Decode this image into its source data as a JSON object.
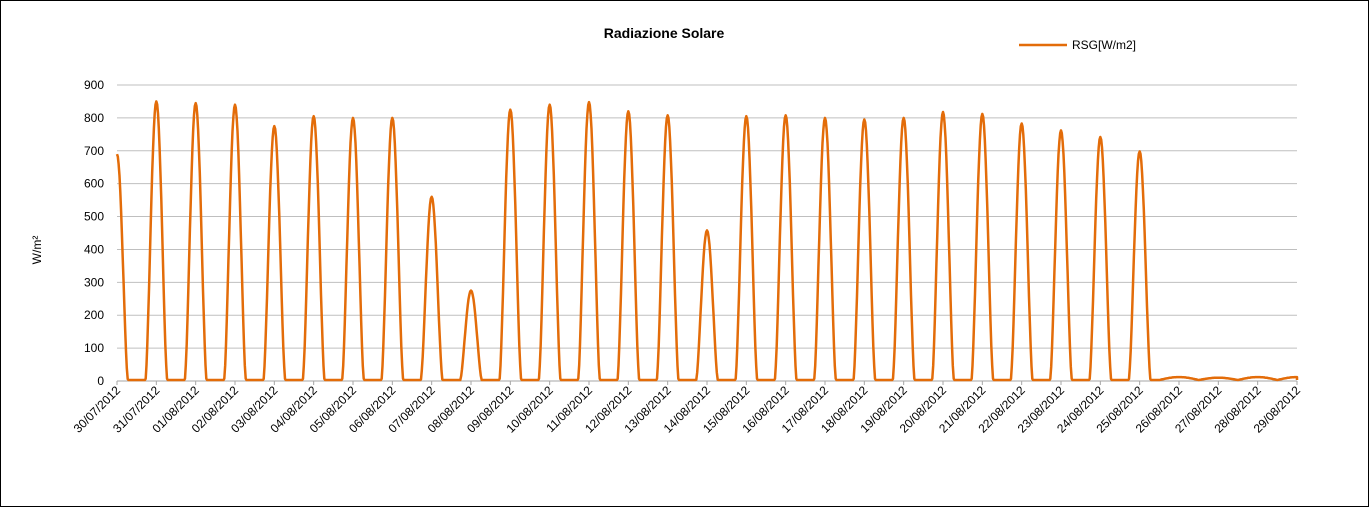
{
  "chart_data": {
    "type": "line",
    "title": "Radiazione Solare",
    "ylabel": "W/m²",
    "xlabel": "",
    "ylim": [
      0,
      900
    ],
    "yticks": [
      "0",
      "100",
      "200",
      "300",
      "400",
      "500",
      "600",
      "700",
      "800",
      "900"
    ],
    "grid": true,
    "legend_position": "top-right",
    "categories": [
      "30/07/2012",
      "31/07/2012",
      "01/08/2012",
      "02/08/2012",
      "03/08/2012",
      "04/08/2012",
      "05/08/2012",
      "06/08/2012",
      "07/08/2012",
      "08/08/2012",
      "09/08/2012",
      "10/08/2012",
      "11/08/2012",
      "12/08/2012",
      "13/08/2012",
      "14/08/2012",
      "15/08/2012",
      "16/08/2012",
      "17/08/2012",
      "18/08/2012",
      "19/08/2012",
      "20/08/2012",
      "21/08/2012",
      "22/08/2012",
      "23/08/2012",
      "24/08/2012",
      "25/08/2012",
      "26/08/2012",
      "27/08/2012",
      "28/08/2012",
      "29/08/2012"
    ],
    "series": [
      {
        "name": "RSG[W/m2]",
        "color": "#E36C09",
        "daily_peaks": [
          {
            "x": "30/07/2012",
            "peak": 690
          },
          {
            "x": "31/07/2012",
            "peak": 850
          },
          {
            "x": "01/08/2012",
            "peak": 845
          },
          {
            "x": "02/08/2012",
            "peak": 840
          },
          {
            "x": "03/08/2012",
            "peak": 775
          },
          {
            "x": "04/08/2012",
            "peak": 805
          },
          {
            "x": "05/08/2012",
            "peak": 800
          },
          {
            "x": "06/08/2012",
            "peak": 800
          },
          {
            "x": "07/08/2012",
            "peak": 560
          },
          {
            "x": "08/08/2012",
            "peak": 275
          },
          {
            "x": "09/08/2012",
            "peak": 825
          },
          {
            "x": "10/08/2012",
            "peak": 840
          },
          {
            "x": "11/08/2012",
            "peak": 848
          },
          {
            "x": "12/08/2012",
            "peak": 820
          },
          {
            "x": "13/08/2012",
            "peak": 808
          },
          {
            "x": "14/08/2012",
            "peak": 458
          },
          {
            "x": "15/08/2012",
            "peak": 805
          },
          {
            "x": "16/08/2012",
            "peak": 808
          },
          {
            "x": "17/08/2012",
            "peak": 800
          },
          {
            "x": "18/08/2012",
            "peak": 795
          },
          {
            "x": "19/08/2012",
            "peak": 800
          },
          {
            "x": "20/08/2012",
            "peak": 818
          },
          {
            "x": "21/08/2012",
            "peak": 812
          },
          {
            "x": "22/08/2012",
            "peak": 783
          },
          {
            "x": "23/08/2012",
            "peak": 762
          },
          {
            "x": "24/08/2012",
            "peak": 742
          },
          {
            "x": "25/08/2012",
            "peak": 698
          },
          {
            "x": "26/08/2012",
            "peak": 12
          },
          {
            "x": "27/08/2012",
            "peak": 10
          },
          {
            "x": "28/08/2012",
            "peak": 12
          },
          {
            "x": "29/08/2012",
            "peak": 12
          }
        ]
      }
    ]
  }
}
